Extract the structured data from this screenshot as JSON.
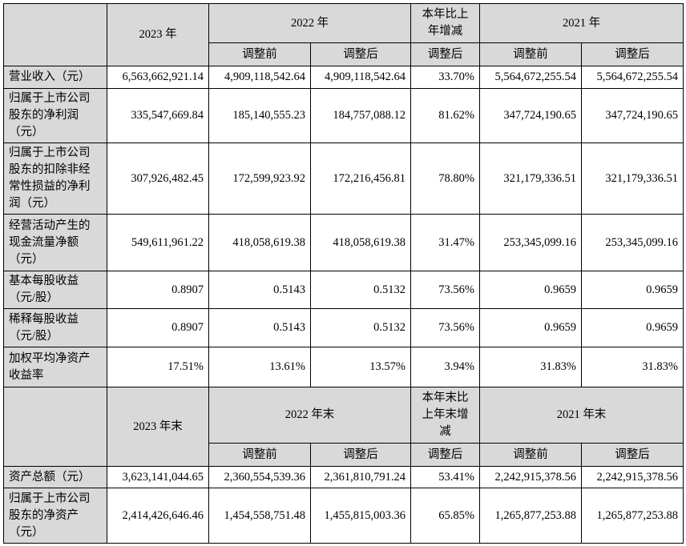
{
  "table": {
    "header1": {
      "year1": "2023 年",
      "year2": "2022 年",
      "change": "本年比上年增减",
      "year3": "2021 年",
      "sub": [
        "调整前",
        "调整后",
        "调整后",
        "调整前",
        "调整后"
      ]
    },
    "rows1": [
      [
        "营业收入（元）",
        "6,563,662,921.14",
        "4,909,118,542.64",
        "4,909,118,542.64",
        "33.70%",
        "5,564,672,255.54",
        "5,564,672,255.54"
      ],
      [
        "归属于上市公司股东的净利润（元）",
        "335,547,669.84",
        "185,140,555.23",
        "184,757,088.12",
        "81.62%",
        "347,724,190.65",
        "347,724,190.65"
      ],
      [
        "归属于上市公司股东的扣除非经常性损益的净利润（元）",
        "307,926,482.45",
        "172,599,923.92",
        "172,216,456.81",
        "78.80%",
        "321,179,336.51",
        "321,179,336.51"
      ],
      [
        "经营活动产生的现金流量净额（元）",
        "549,611,961.22",
        "418,058,619.38",
        "418,058,619.38",
        "31.47%",
        "253,345,099.16",
        "253,345,099.16"
      ],
      [
        "基本每股收益（元/股）",
        "0.8907",
        "0.5143",
        "0.5132",
        "73.56%",
        "0.9659",
        "0.9659"
      ],
      [
        "稀释每股收益（元/股）",
        "0.8907",
        "0.5143",
        "0.5132",
        "73.56%",
        "0.9659",
        "0.9659"
      ],
      [
        "加权平均净资产收益率",
        "17.51%",
        "13.61%",
        "13.57%",
        "3.94%",
        "31.83%",
        "31.83%"
      ]
    ],
    "header2": {
      "year1": "2023 年末",
      "year2": "2022 年末",
      "change": "本年末比上年末增减",
      "year3": "2021 年末",
      "sub": [
        "调整前",
        "调整后",
        "调整后",
        "调整前",
        "调整后"
      ]
    },
    "rows2": [
      [
        "资产总额（元）",
        "3,623,141,044.65",
        "2,360,554,539.36",
        "2,361,810,791.24",
        "53.41%",
        "2,242,915,378.56",
        "2,242,915,378.56"
      ],
      [
        "归属于上市公司股东的净资产（元）",
        "2,414,426,646.46",
        "1,454,558,751.48",
        "1,455,815,003.36",
        "65.85%",
        "1,265,877,253.88",
        "1,265,877,253.88"
      ]
    ]
  }
}
